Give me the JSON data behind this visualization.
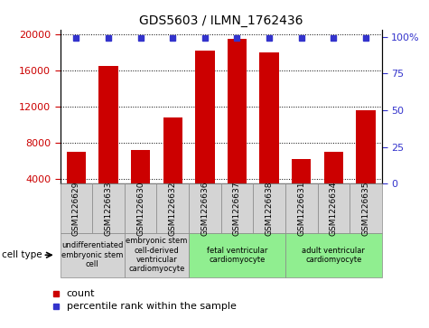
{
  "title": "GDS5603 / ILMN_1762436",
  "samples": [
    "GSM1226629",
    "GSM1226633",
    "GSM1226630",
    "GSM1226632",
    "GSM1226636",
    "GSM1226637",
    "GSM1226638",
    "GSM1226631",
    "GSM1226634",
    "GSM1226635"
  ],
  "counts": [
    7000,
    16500,
    7200,
    10800,
    18200,
    19500,
    18000,
    6200,
    7000,
    11600
  ],
  "ylim_left": [
    3500,
    20500
  ],
  "yticks_left": [
    4000,
    8000,
    12000,
    16000,
    20000
  ],
  "ylim_right": [
    0,
    105
  ],
  "yticks_right": [
    0,
    25,
    50,
    75,
    100
  ],
  "yticklabels_right": [
    "0",
    "25",
    "50",
    "75",
    "100%"
  ],
  "bar_color": "#cc0000",
  "dot_color": "#3333cc",
  "bar_width": 0.6,
  "cell_type_groups": [
    {
      "label": "undifferentiated\nembryonic stem\ncell",
      "indices": [
        0,
        1
      ],
      "color": "#d4d4d4"
    },
    {
      "label": "embryonic stem\ncell-derived\nventricular\ncardiomyocyte",
      "indices": [
        2,
        3
      ],
      "color": "#d4d4d4"
    },
    {
      "label": "fetal ventricular\ncardiomyocyte",
      "indices": [
        4,
        5,
        6
      ],
      "color": "#90ee90"
    },
    {
      "label": "adult ventricular\ncardiomyocyte",
      "indices": [
        7,
        8,
        9
      ],
      "color": "#90ee90"
    }
  ],
  "cell_type_label": "cell type",
  "legend_count_label": "count",
  "legend_percentile_label": "percentile rank within the sample",
  "left_axis_color": "#cc0000",
  "right_axis_color": "#3333cc",
  "tick_label_bg": "#d4d4d4",
  "n_samples": 10
}
